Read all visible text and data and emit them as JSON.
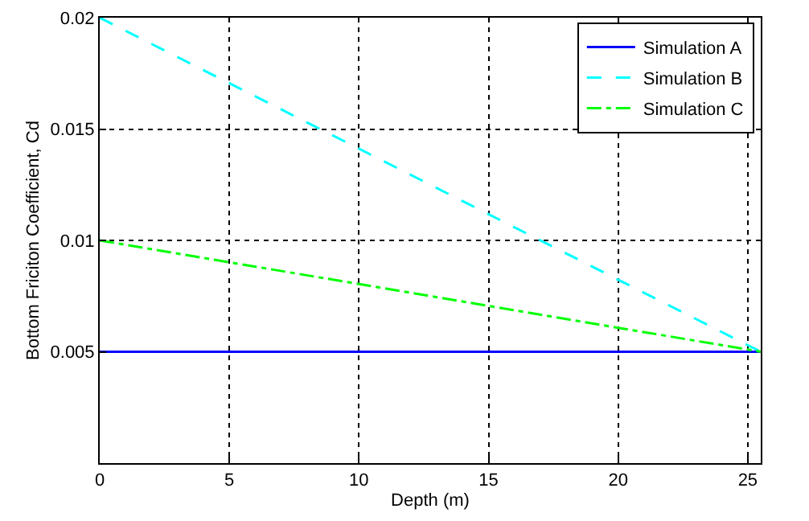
{
  "chart_data": {
    "type": "line",
    "xlabel": "Depth (m)",
    "ylabel": "Bottom Friciton Coefficient, Cd",
    "x": [
      0,
      25.5
    ],
    "series": [
      {
        "name": "Simulation A",
        "color": "#0000ff",
        "values": [
          0.005,
          0.005
        ],
        "line_style": "solid"
      },
      {
        "name": "Simulation B",
        "color": "#00ffff",
        "values": [
          0.02,
          0.005
        ],
        "line_style": "dashed"
      },
      {
        "name": "Simulation C",
        "color": "#00ff00",
        "values": [
          0.01,
          0.005
        ],
        "line_style": "dashdot"
      }
    ],
    "xlim": [
      0,
      25.5
    ],
    "xticks": [
      0,
      5,
      10,
      15,
      20,
      25
    ],
    "ylim": [
      0,
      0.02
    ],
    "yticks": [
      0.005,
      0.01,
      0.015,
      0.02
    ],
    "grid": true,
    "legend": "top right",
    "marker": "none"
  }
}
